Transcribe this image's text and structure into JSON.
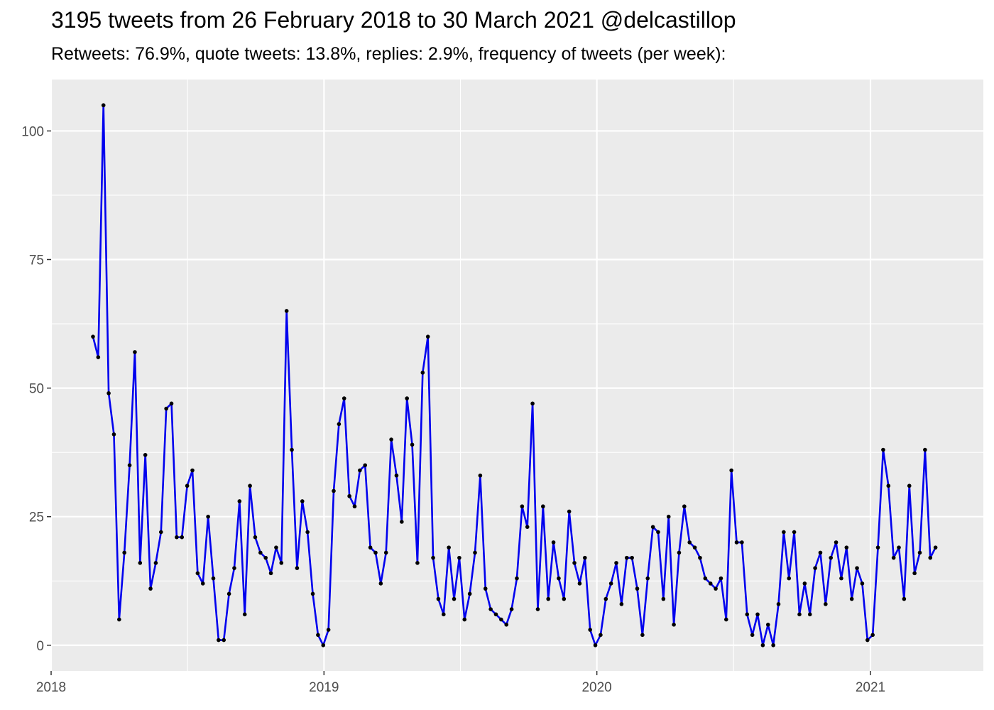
{
  "chart_data": {
    "type": "line",
    "title": "3195 tweets from 26 February 2018 to 30 March 2021 @delcastillop",
    "subtitle": "Retweets: 76.9%, quote tweets: 13.8%, replies: 2.9%, frequency of tweets (per week):",
    "xlabel": "",
    "ylabel": "",
    "x_start": "2018-02-26",
    "x_step_days": 7,
    "xlim": [
      "2018-01-01",
      "2021-06-01"
    ],
    "ylim": [
      -5,
      110
    ],
    "x_ticks": [
      "2018",
      "2019",
      "2020",
      "2021"
    ],
    "x_tick_dates": [
      "2018-01-01",
      "2019-01-01",
      "2020-01-01",
      "2021-01-01"
    ],
    "y_ticks": [
      0,
      25,
      50,
      75,
      100
    ],
    "grid": true,
    "legend": "none",
    "line_color": "#0000ee",
    "point_color": "#000000",
    "panel_color": "#ebebeb",
    "grid_color": "#ffffff",
    "series": [
      {
        "values": [
          60,
          56,
          105,
          49,
          41,
          5,
          18,
          35,
          57,
          16,
          37,
          11,
          16,
          22,
          46,
          47,
          21,
          21,
          31,
          34,
          14,
          12,
          25,
          13,
          1,
          1,
          10,
          15,
          28,
          6,
          31,
          21,
          18,
          17,
          14,
          19,
          16,
          65,
          38,
          15,
          28,
          22,
          10,
          2,
          0,
          3,
          30,
          43,
          48,
          29,
          27,
          34,
          35,
          19,
          18,
          12,
          18,
          40,
          33,
          24,
          48,
          39,
          16,
          53,
          60,
          17,
          9,
          6,
          19,
          9,
          17,
          5,
          10,
          18,
          33,
          11,
          7,
          6,
          5,
          4,
          7,
          13,
          27,
          23,
          47,
          7,
          27,
          9,
          20,
          13,
          9,
          26,
          16,
          12,
          17,
          3,
          0,
          2,
          9,
          12,
          16,
          8,
          17,
          17,
          11,
          2,
          13,
          23,
          22,
          9,
          25,
          4,
          18,
          27,
          20,
          19,
          17,
          13,
          12,
          11,
          13,
          5,
          34,
          20,
          20,
          6,
          2,
          6,
          0,
          4,
          0,
          8,
          22,
          13,
          22,
          6,
          12,
          6,
          15,
          18,
          8,
          17,
          20,
          13,
          19,
          9,
          15,
          12,
          1,
          2,
          19,
          38,
          31,
          17,
          19,
          9,
          31,
          14,
          18,
          38,
          17,
          19
        ]
      }
    ]
  }
}
